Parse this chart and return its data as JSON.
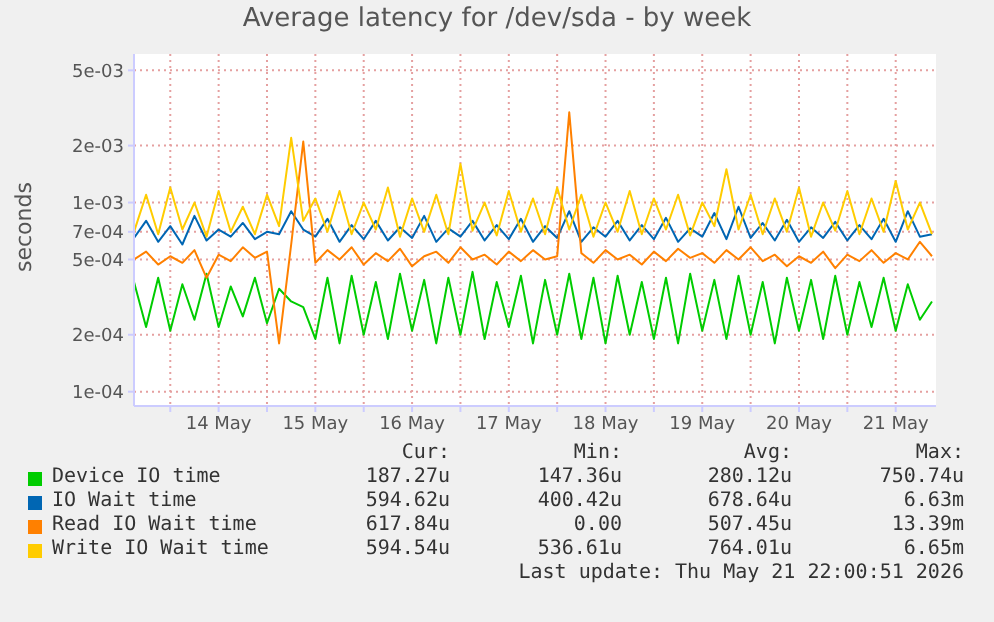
{
  "chart_data": {
    "type": "line",
    "title": "Average latency for /dev/sda - by week",
    "ylabel": "seconds",
    "log": "y",
    "grid": true,
    "legend": "bottom",
    "marker": "none",
    "line_style": "solid",
    "xlim": [
      "2026-05-13T15:00",
      "2026-05-21T22:00"
    ],
    "xticks": [
      {
        "value": "2026-05-14",
        "label": null
      },
      {
        "value": "2026-05-14T12:00",
        "label": "14 May"
      },
      {
        "value": "2026-05-15",
        "label": null
      },
      {
        "value": "2026-05-15T12:00",
        "label": "15 May"
      },
      {
        "value": "2026-05-16",
        "label": null
      },
      {
        "value": "2026-05-16T12:00",
        "label": "16 May"
      },
      {
        "value": "2026-05-17",
        "label": null
      },
      {
        "value": "2026-05-17T12:00",
        "label": "17 May"
      },
      {
        "value": "2026-05-18",
        "label": null
      },
      {
        "value": "2026-05-18T12:00",
        "label": "18 May"
      },
      {
        "value": "2026-05-19",
        "label": null
      },
      {
        "value": "2026-05-19T12:00",
        "label": "19 May"
      },
      {
        "value": "2026-05-20",
        "label": null
      },
      {
        "value": "2026-05-20T12:00",
        "label": "20 May"
      },
      {
        "value": "2026-05-21",
        "label": null
      },
      {
        "value": "2026-05-21T12:00",
        "label": "21 May"
      }
    ],
    "ylim": [
      8.4e-05,
      0.0061
    ],
    "yticks": [
      {
        "value": 0.0001,
        "label": "1e-04"
      },
      {
        "value": 0.0002,
        "label": "2e-04"
      },
      {
        "value": 0.0005,
        "label": "5e-04"
      },
      {
        "value": 0.0007,
        "label": "7e-04"
      },
      {
        "value": 0.001,
        "label": "1e-03"
      },
      {
        "value": 0.002,
        "label": "2e-03"
      },
      {
        "value": 0.005,
        "label": "5e-03"
      }
    ],
    "x": [
      "2026-05-13T15:00",
      "2026-05-13T18:00",
      "2026-05-13T21:00",
      "2026-05-14T00:00",
      "2026-05-14T03:00",
      "2026-05-14T06:00",
      "2026-05-14T09:00",
      "2026-05-14T12:00",
      "2026-05-14T15:00",
      "2026-05-14T18:00",
      "2026-05-14T21:00",
      "2026-05-15T00:00",
      "2026-05-15T03:00",
      "2026-05-15T06:00",
      "2026-05-15T09:00",
      "2026-05-15T12:00",
      "2026-05-15T15:00",
      "2026-05-15T18:00",
      "2026-05-15T21:00",
      "2026-05-16T00:00",
      "2026-05-16T03:00",
      "2026-05-16T06:00",
      "2026-05-16T09:00",
      "2026-05-16T12:00",
      "2026-05-16T15:00",
      "2026-05-16T18:00",
      "2026-05-16T21:00",
      "2026-05-17T00:00",
      "2026-05-17T03:00",
      "2026-05-17T06:00",
      "2026-05-17T09:00",
      "2026-05-17T12:00",
      "2026-05-17T15:00",
      "2026-05-17T18:00",
      "2026-05-17T21:00",
      "2026-05-18T00:00",
      "2026-05-18T03:00",
      "2026-05-18T06:00",
      "2026-05-18T09:00",
      "2026-05-18T12:00",
      "2026-05-18T15:00",
      "2026-05-18T18:00",
      "2026-05-18T21:00",
      "2026-05-19T00:00",
      "2026-05-19T03:00",
      "2026-05-19T06:00",
      "2026-05-19T09:00",
      "2026-05-19T12:00",
      "2026-05-19T15:00",
      "2026-05-19T18:00",
      "2026-05-19T21:00",
      "2026-05-20T00:00",
      "2026-05-20T03:00",
      "2026-05-20T06:00",
      "2026-05-20T09:00",
      "2026-05-20T12:00",
      "2026-05-20T15:00",
      "2026-05-20T18:00",
      "2026-05-20T21:00",
      "2026-05-21T00:00",
      "2026-05-21T03:00",
      "2026-05-21T06:00",
      "2026-05-21T09:00",
      "2026-05-21T12:00",
      "2026-05-21T15:00",
      "2026-05-21T18:00",
      "2026-05-21T21:00"
    ],
    "series": [
      {
        "name": "Device IO time",
        "color": "#00cc00",
        "values": [
          0.00038,
          0.00022,
          0.0004,
          0.00021,
          0.00037,
          0.00024,
          0.00042,
          0.00022,
          0.00036,
          0.00025,
          0.0004,
          0.00023,
          0.00035,
          0.0003,
          0.00028,
          0.00019,
          0.0004,
          0.00018,
          0.00041,
          0.0002,
          0.00038,
          0.00019,
          0.00042,
          0.00021,
          0.00039,
          0.00018,
          0.0004,
          0.0002,
          0.00043,
          0.00019,
          0.00038,
          0.00022,
          0.00041,
          0.00018,
          0.00039,
          0.0002,
          0.00042,
          0.00019,
          0.0004,
          0.00018,
          0.00041,
          0.0002,
          0.00038,
          0.00019,
          0.0004,
          0.00018,
          0.00042,
          0.00021,
          0.00039,
          0.00019,
          0.00041,
          0.0002,
          0.00038,
          0.00018,
          0.0004,
          0.00021,
          0.00039,
          0.00019,
          0.00041,
          0.0002,
          0.00038,
          0.00022,
          0.0004,
          0.00021,
          0.00037,
          0.00024,
          0.0003
        ]
      },
      {
        "name": "IO Wait time",
        "color": "#0066b3",
        "values": [
          0.00065,
          0.0008,
          0.00062,
          0.00075,
          0.0006,
          0.00085,
          0.00063,
          0.00072,
          0.00066,
          0.00078,
          0.00064,
          0.0007,
          0.00068,
          0.0009,
          0.00072,
          0.00066,
          0.00082,
          0.00062,
          0.00076,
          0.00064,
          0.0008,
          0.00063,
          0.00074,
          0.00065,
          0.00085,
          0.00062,
          0.00073,
          0.00066,
          0.0008,
          0.00063,
          0.00076,
          0.00064,
          0.00082,
          0.00062,
          0.00075,
          0.00065,
          0.0009,
          0.00062,
          0.00074,
          0.00066,
          0.0008,
          0.00063,
          0.00076,
          0.00064,
          0.00083,
          0.00062,
          0.00073,
          0.00066,
          0.00088,
          0.00064,
          0.00095,
          0.00065,
          0.00078,
          0.00063,
          0.00081,
          0.00062,
          0.00074,
          0.00065,
          0.00079,
          0.00063,
          0.00076,
          0.00064,
          0.00082,
          0.00062,
          0.0009,
          0.00066,
          0.00068
        ]
      },
      {
        "name": "Read IO Wait time",
        "color": "#ff8000",
        "values": [
          0.0005,
          0.00055,
          0.00047,
          0.00052,
          0.00048,
          0.00056,
          0.0004,
          0.00053,
          0.00049,
          0.00058,
          0.00051,
          0.00055,
          0.00018,
          0.0006,
          0.0021,
          0.00048,
          0.00056,
          0.0005,
          0.00058,
          0.00047,
          0.00054,
          0.00049,
          0.00057,
          0.00046,
          0.00052,
          0.00055,
          0.00048,
          0.00058,
          0.0005,
          0.00053,
          0.00047,
          0.00055,
          0.00049,
          0.00056,
          0.0005,
          0.00052,
          0.003,
          0.00054,
          0.00048,
          0.00056,
          0.0005,
          0.00053,
          0.00047,
          0.00055,
          0.00049,
          0.00057,
          0.00051,
          0.00054,
          0.00048,
          0.00056,
          0.0005,
          0.00058,
          0.00049,
          0.00053,
          0.00046,
          0.00052,
          0.00048,
          0.00055,
          0.00045,
          0.00053,
          0.00049,
          0.00056,
          0.00048,
          0.00054,
          0.0005,
          0.00062,
          0.00052
        ]
      },
      {
        "name": "Write IO Wait time",
        "color": "#ffcc00",
        "values": [
          0.0007,
          0.0011,
          0.00068,
          0.0012,
          0.00072,
          0.001,
          0.00066,
          0.00115,
          0.0007,
          0.00095,
          0.00068,
          0.0011,
          0.00075,
          0.0022,
          0.0008,
          0.00105,
          0.0007,
          0.00115,
          0.00068,
          0.001,
          0.00072,
          0.0012,
          0.00066,
          0.00105,
          0.0007,
          0.0011,
          0.00068,
          0.0016,
          0.00071,
          0.001,
          0.00067,
          0.00115,
          0.0007,
          0.00105,
          0.00068,
          0.0012,
          0.00072,
          0.0011,
          0.00066,
          0.001,
          0.0007,
          0.00115,
          0.00068,
          0.00105,
          0.00072,
          0.0011,
          0.00067,
          0.001,
          0.00075,
          0.0015,
          0.00072,
          0.0011,
          0.00068,
          0.00105,
          0.0007,
          0.0012,
          0.00066,
          0.001,
          0.00071,
          0.00115,
          0.00068,
          0.00105,
          0.0007,
          0.0013,
          0.00072,
          0.001,
          0.00068
        ]
      }
    ],
    "annotations": [
      "Cur:",
      "Min:",
      "Avg:",
      "Max:",
      "187.27u",
      "147.36u",
      "280.12u",
      "750.74u",
      "594.62u",
      "400.42u",
      "678.64u",
      "6.63m",
      "617.84u",
      "0.00",
      "507.45u",
      "13.39m",
      "594.54u",
      "536.61u",
      "764.01u",
      "6.65m",
      "Last update: Thu May 21 22:00:51 2026"
    ]
  }
}
